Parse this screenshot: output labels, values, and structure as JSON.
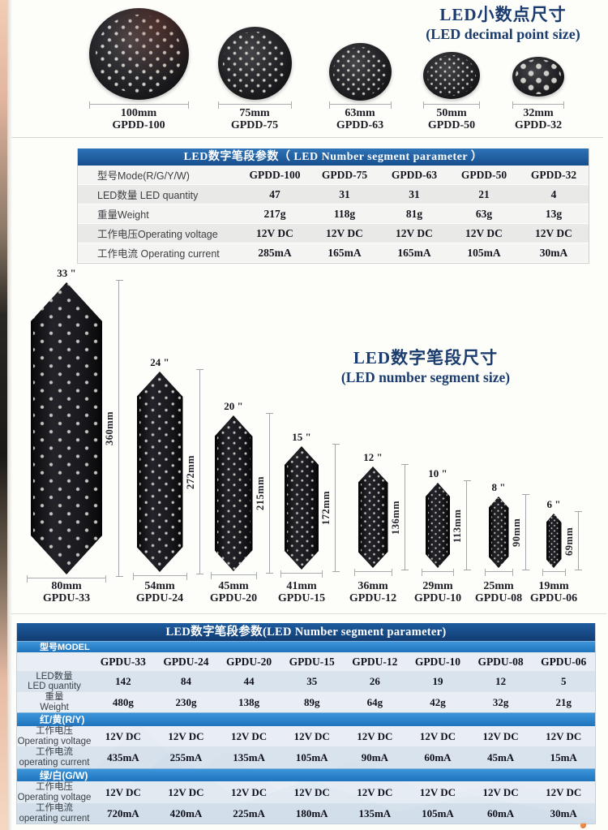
{
  "colors": {
    "title_navy": "#1b3c6e",
    "table1_header_blue": "#1e63ac",
    "table2_header_blue": "#174e8c",
    "band_blue": "#2b83c8"
  },
  "decimal_section": {
    "title_cn": "LED小数点尺寸",
    "title_en": "(LED decimal point size)",
    "discs": [
      {
        "size": "100mm",
        "model": "GPDD-100"
      },
      {
        "size": "75mm",
        "model": "GPDD-75"
      },
      {
        "size": "63mm",
        "model": "GPDD-63"
      },
      {
        "size": "50mm",
        "model": "GPDD-50"
      },
      {
        "size": "32mm",
        "model": "GPDD-32"
      }
    ]
  },
  "decimal_table": {
    "title": "LED数字笔段参数（ LED Number segment parameter ）",
    "rows": [
      {
        "label": "型号Mode(R/G/Y/W)",
        "values": [
          "GPDD-100",
          "GPDD-75",
          "GPDD-63",
          "GPDD-50",
          "GPDD-32"
        ]
      },
      {
        "label": "LED数量 LED quantity",
        "values": [
          "47",
          "31",
          "31",
          "21",
          "4"
        ]
      },
      {
        "label": "重量Weight",
        "values": [
          "217g",
          "118g",
          "81g",
          "63g",
          "13g"
        ]
      },
      {
        "label": "工作电压Operating voltage",
        "values": [
          "12V DC",
          "12V DC",
          "12V DC",
          "12V DC",
          "12V DC"
        ]
      },
      {
        "label": "工作电流 Operating current",
        "values": [
          "285mA",
          "165mA",
          "165mA",
          "105mA",
          "30mA"
        ]
      }
    ]
  },
  "segment_section": {
    "title_cn": "LED数字笔段尺寸",
    "title_en": "(LED number segment  size)",
    "segments": [
      {
        "inch": "33 \"",
        "height_mm": "360mm",
        "width_mm": "80mm",
        "model": "GPDU-33"
      },
      {
        "inch": "24 \"",
        "height_mm": "272mm",
        "width_mm": "54mm",
        "model": "GPDU-24"
      },
      {
        "inch": "20 \"",
        "height_mm": "215mm",
        "width_mm": "45mm",
        "model": "GPDU-20"
      },
      {
        "inch": "15 \"",
        "height_mm": "172mm",
        "width_mm": "41mm",
        "model": "GPDU-15"
      },
      {
        "inch": "12 \"",
        "height_mm": "136mm",
        "width_mm": "36mm",
        "model": "GPDU-12"
      },
      {
        "inch": "10 \"",
        "height_mm": "113mm",
        "width_mm": "29mm",
        "model": "GPDU-10"
      },
      {
        "inch": "8 \"",
        "height_mm": "90mm",
        "width_mm": "25mm",
        "model": "GPDU-08"
      },
      {
        "inch": "6 \"",
        "height_mm": "69mm",
        "width_mm": "19mm",
        "model": "GPDU-06"
      }
    ]
  },
  "segment_table": {
    "title": "LED数字笔段参数(LED Number segment  parameter)",
    "model_band": "型号MODEL",
    "models": [
      "GPDU-33",
      "GPDU-24",
      "GPDU-20",
      "GPDU-15",
      "GPDU-12",
      "GPDU-10",
      "GPDU-08",
      "GPDU-06"
    ],
    "rows_top": [
      {
        "label_cn": "LED数量",
        "label_en": "LED quantity",
        "values": [
          "142",
          "84",
          "44",
          "35",
          "26",
          "19",
          "12",
          "5"
        ]
      },
      {
        "label_cn": "重量",
        "label_en": "Weight",
        "values": [
          "480g",
          "230g",
          "138g",
          "89g",
          "64g",
          "42g",
          "32g",
          "21g"
        ]
      }
    ],
    "band_ry": "红/黄(R/Y)",
    "rows_ry": [
      {
        "label_cn": "工作电压",
        "label_en": "Operating voltage",
        "values": [
          "12V DC",
          "12V DC",
          "12V DC",
          "12V DC",
          "12V DC",
          "12V DC",
          "12V DC",
          "12V DC"
        ]
      },
      {
        "label_cn": "工作电流",
        "label_en": "operating current",
        "values": [
          "435mA",
          "255mA",
          "135mA",
          "105mA",
          "90mA",
          "60mA",
          "45mA",
          "15mA"
        ]
      }
    ],
    "band_gw": "绿/白(G/W)",
    "rows_gw": [
      {
        "label_cn": "工作电压",
        "label_en": "Operating voltage",
        "values": [
          "12V DC",
          "12V DC",
          "12V DC",
          "12V DC",
          "12V DC",
          "12V DC",
          "12V DC",
          "12V DC"
        ]
      },
      {
        "label_cn": "工作电流",
        "label_en": "operating current",
        "values": [
          "720mA",
          "420mA",
          "225mA",
          "180mA",
          "135mA",
          "105mA",
          "60mA",
          "30mA"
        ]
      }
    ]
  }
}
